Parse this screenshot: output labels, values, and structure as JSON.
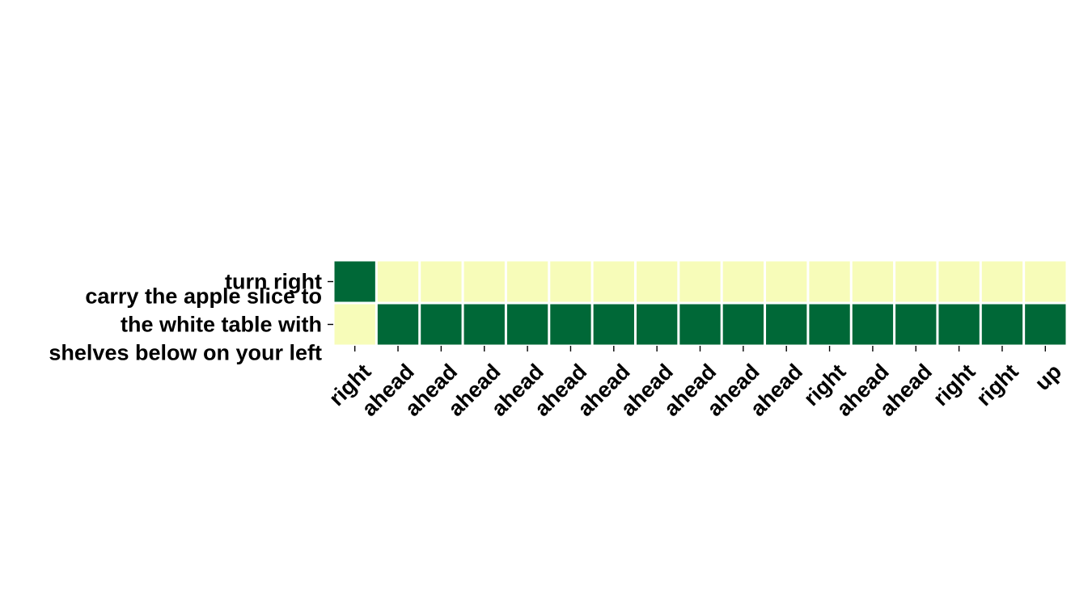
{
  "chart_data": {
    "type": "heatmap",
    "title": "",
    "xlabel": "",
    "ylabel": "",
    "rows": [
      "turn right",
      "carry the apple slice to the white table with shelves below on your left"
    ],
    "row_label_lines": [
      [
        "turn right"
      ],
      [
        "carry the apple slice to",
        "the white table with",
        "shelves below on your left"
      ]
    ],
    "columns": [
      "right",
      "ahead",
      "ahead",
      "ahead",
      "ahead",
      "ahead",
      "ahead",
      "ahead",
      "ahead",
      "ahead",
      "ahead",
      "right",
      "ahead",
      "ahead",
      "right",
      "right",
      "up"
    ],
    "values": [
      [
        1,
        0,
        0,
        0,
        0,
        0,
        0,
        0,
        0,
        0,
        0,
        0,
        0,
        0,
        0,
        0,
        0
      ],
      [
        0,
        1,
        1,
        1,
        1,
        1,
        1,
        1,
        1,
        1,
        1,
        1,
        1,
        1,
        1,
        1,
        1
      ]
    ],
    "value_range": [
      0,
      1
    ],
    "colormap": {
      "low": "#f7fcb9",
      "high": "#006837"
    },
    "cell_border_color": "#ffffff",
    "grid": false,
    "legend": "none"
  }
}
